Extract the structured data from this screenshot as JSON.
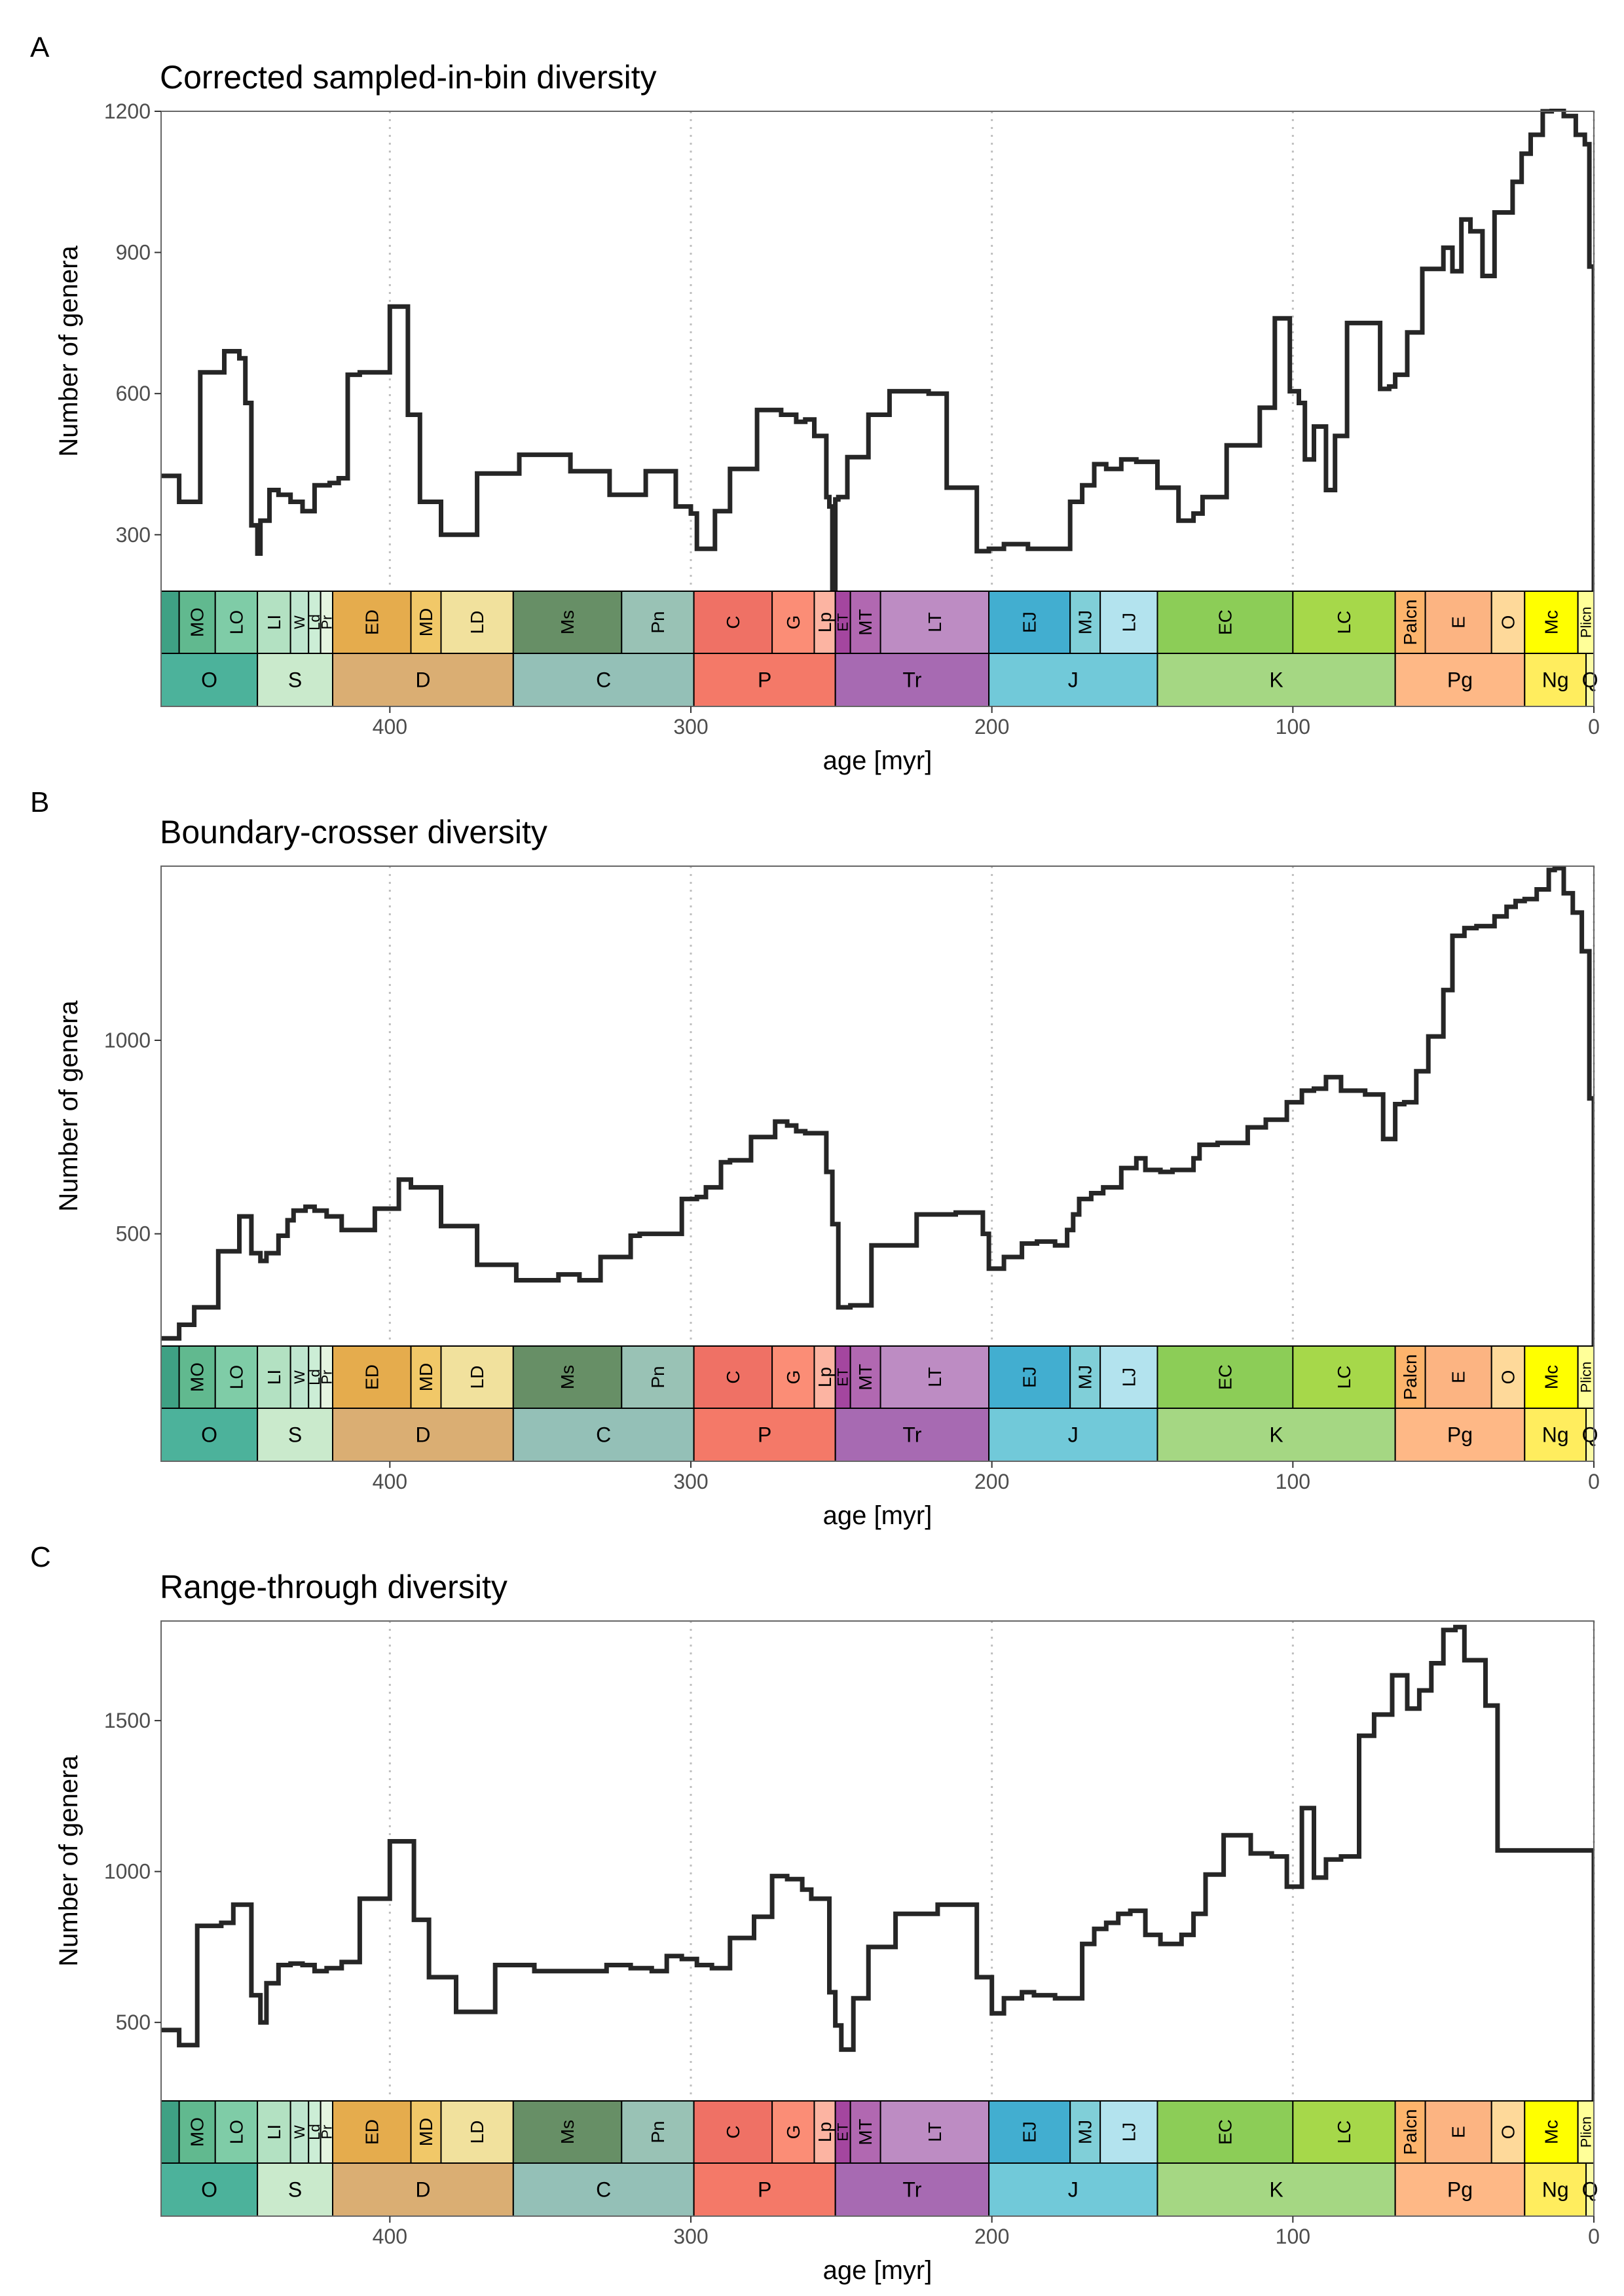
{
  "colors": {
    "line": "#262626",
    "frame": "#666666",
    "gridline": "#bfbfbf",
    "tick_text": "#4d4d4d"
  },
  "timescale": {
    "stages": [
      {
        "label": "",
        "start": 485,
        "end": 470,
        "color": "#3fa184"
      },
      {
        "label": "MO",
        "start": 470,
        "end": 458,
        "color": "#61b98f"
      },
      {
        "label": "LO",
        "start": 458,
        "end": 444,
        "color": "#7fcca7"
      },
      {
        "label": "LI",
        "start": 444,
        "end": 433,
        "color": "#b3e1c2"
      },
      {
        "label": "W",
        "start": 433,
        "end": 427,
        "color": "#bfe6cf"
      },
      {
        "label": "Ld",
        "start": 427,
        "end": 423,
        "color": "#cceed6"
      },
      {
        "label": "Pr",
        "start": 423,
        "end": 419,
        "color": "#e6f5e1"
      },
      {
        "label": "ED",
        "start": 419,
        "end": 393,
        "color": "#e5ac4d"
      },
      {
        "label": "MD",
        "start": 393,
        "end": 383,
        "color": "#f1c868"
      },
      {
        "label": "LD",
        "start": 383,
        "end": 359,
        "color": "#f1e19d"
      },
      {
        "label": "Ms",
        "start": 359,
        "end": 323,
        "color": "#678f66"
      },
      {
        "label": "Pn",
        "start": 323,
        "end": 299,
        "color": "#99c2b5"
      },
      {
        "label": "C",
        "start": 299,
        "end": 273,
        "color": "#ef7165"
      },
      {
        "label": "G",
        "start": 273,
        "end": 259,
        "color": "#fb8d76"
      },
      {
        "label": "Lp",
        "start": 259,
        "end": 252,
        "color": "#fcb4a2"
      },
      {
        "label": "ET",
        "start": 252,
        "end": 247,
        "color": "#a4469f"
      },
      {
        "label": "MT",
        "start": 247,
        "end": 237,
        "color": "#b168b1"
      },
      {
        "label": "LT",
        "start": 237,
        "end": 201,
        "color": "#bd8cc3"
      },
      {
        "label": "EJ",
        "start": 201,
        "end": 174,
        "color": "#42aed0"
      },
      {
        "label": "MJ",
        "start": 174,
        "end": 164,
        "color": "#80cfd8"
      },
      {
        "label": "LJ",
        "start": 164,
        "end": 145,
        "color": "#b3e3ee"
      },
      {
        "label": "EC",
        "start": 145,
        "end": 100,
        "color": "#8ccd57"
      },
      {
        "label": "LC",
        "start": 100,
        "end": 66,
        "color": "#a6d84a"
      },
      {
        "label": "Palcn",
        "start": 66,
        "end": 56,
        "color": "#fdb46c"
      },
      {
        "label": "E",
        "start": 56,
        "end": 34,
        "color": "#fcb482"
      },
      {
        "label": "O",
        "start": 34,
        "end": 23,
        "color": "#fed99a"
      },
      {
        "label": "Mc",
        "start": 23,
        "end": 5.3,
        "color": "#ffff00"
      },
      {
        "label": "Plicn",
        "start": 5.3,
        "end": 0,
        "color": "#ffff99"
      }
    ],
    "periods": [
      {
        "label": "O",
        "start": 485,
        "end": 444,
        "color": "#009270"
      },
      {
        "label": "S",
        "start": 444,
        "end": 419,
        "color": "#b3e1b6"
      },
      {
        "label": "D",
        "start": 419,
        "end": 359,
        "color": "#cb8c37"
      },
      {
        "label": "C",
        "start": 359,
        "end": 299,
        "color": "#67a599"
      },
      {
        "label": "P",
        "start": 299,
        "end": 252,
        "color": "#f04028"
      },
      {
        "label": "Tr",
        "start": 252,
        "end": 201,
        "color": "#812b92"
      },
      {
        "label": "J",
        "start": 201,
        "end": 145,
        "color": "#34b2c9"
      },
      {
        "label": "K",
        "start": 145,
        "end": 66,
        "color": "#7fc64e"
      },
      {
        "label": "Pg",
        "start": 66,
        "end": 23,
        "color": "#fd9a52"
      },
      {
        "label": "Ng",
        "start": 23,
        "end": 2.6,
        "color": "#ffe619"
      },
      {
        "label": "Q",
        "start": 2.6,
        "end": 0,
        "color": "#f9f97f"
      }
    ]
  },
  "panels": [
    {
      "letter": "A",
      "title": "Corrected sampled-in-bin diversity",
      "ylabel": "Number of genera",
      "xlabel": "age [myr]"
    },
    {
      "letter": "B",
      "title": "Boundary-crosser diversity",
      "ylabel": "Number of genera",
      "xlabel": "age [myr]"
    },
    {
      "letter": "C",
      "title": "Range-through diversity",
      "ylabel": "Number of genera",
      "xlabel": "age [myr]"
    }
  ],
  "chart_data": [
    {
      "type": "line",
      "step": true,
      "title": "Corrected sampled-in-bin diversity",
      "xlabel": "age [myr]",
      "ylabel": "Number of genera",
      "xlim": [
        476,
        0
      ],
      "ylim": [
        180,
        1200
      ],
      "xticks": [
        400,
        300,
        200,
        100,
        0
      ],
      "yticks": [
        300,
        600,
        900,
        1200
      ],
      "grid_x": [
        400,
        300,
        200,
        100,
        0
      ],
      "x": [
        476,
        470,
        463,
        455,
        450,
        448,
        446,
        444,
        443,
        440,
        437,
        433,
        429,
        425,
        420,
        417,
        414,
        410,
        400,
        394,
        390,
        383,
        371,
        357,
        340,
        327,
        315,
        305,
        300,
        298,
        292,
        287,
        278,
        270,
        265,
        262,
        259,
        255,
        254,
        253,
        252,
        251,
        248,
        241,
        234,
        221,
        215,
        205,
        201,
        196,
        188,
        183,
        174,
        170,
        166,
        162,
        157,
        152,
        145,
        138,
        133,
        130,
        122,
        111,
        106,
        101,
        98,
        96,
        93,
        89,
        86,
        82,
        71,
        68,
        66,
        62,
        57,
        50,
        47,
        44,
        41,
        37,
        33,
        27,
        24,
        21,
        17,
        14,
        10,
        6,
        3,
        1.5,
        0.5
      ],
      "values": [
        425,
        370,
        645,
        690,
        675,
        580,
        320,
        260,
        330,
        395,
        385,
        370,
        350,
        405,
        410,
        420,
        640,
        645,
        785,
        555,
        370,
        300,
        430,
        470,
        435,
        385,
        435,
        360,
        345,
        270,
        350,
        440,
        565,
        555,
        540,
        545,
        510,
        380,
        360,
        170,
        375,
        380,
        465,
        555,
        605,
        600,
        400,
        265,
        270,
        280,
        270,
        270,
        370,
        405,
        450,
        440,
        460,
        455,
        400,
        330,
        345,
        380,
        490,
        570,
        760,
        605,
        580,
        460,
        530,
        395,
        510,
        750,
        610,
        615,
        640,
        730,
        865,
        910,
        860,
        970,
        945,
        850,
        985,
        1050,
        1110,
        1150,
        1200,
        1205,
        1190,
        1150,
        1130,
        870,
        870
      ]
    },
    {
      "type": "line",
      "step": true,
      "title": "Boundary-crosser diversity",
      "xlabel": "age [myr]",
      "ylabel": "Number of genera",
      "xlim": [
        476,
        0
      ],
      "ylim": [
        210,
        1450
      ],
      "xticks": [
        400,
        300,
        200,
        100,
        0
      ],
      "yticks": [
        500,
        1000
      ],
      "grid_x": [
        400,
        300,
        200,
        100,
        0
      ],
      "x": [
        476,
        470,
        465,
        457,
        450,
        446,
        443,
        441,
        437,
        434,
        432,
        428,
        425,
        421,
        416,
        405,
        397,
        393,
        383,
        371,
        358,
        344,
        337,
        330,
        320,
        317,
        303,
        298,
        295,
        290,
        287,
        280,
        272,
        268,
        265,
        262,
        255,
        253,
        251,
        247,
        240,
        225,
        212,
        203,
        201,
        196,
        190,
        185,
        179,
        175,
        173,
        171,
        167,
        163,
        157,
        152,
        149,
        144,
        140,
        133,
        131,
        125,
        115,
        109,
        102,
        97,
        93,
        89,
        84,
        76,
        70,
        66,
        63,
        59,
        55,
        50,
        47,
        43,
        39,
        33,
        29,
        26,
        23,
        19,
        15,
        13,
        10,
        7,
        4,
        1.5,
        0.5
      ],
      "values": [
        230,
        265,
        310,
        455,
        545,
        450,
        430,
        450,
        495,
        535,
        560,
        570,
        560,
        545,
        510,
        565,
        640,
        620,
        520,
        420,
        380,
        395,
        380,
        440,
        495,
        500,
        590,
        595,
        620,
        685,
        690,
        750,
        790,
        780,
        765,
        760,
        660,
        525,
        310,
        315,
        470,
        550,
        555,
        500,
        410,
        440,
        475,
        480,
        470,
        510,
        550,
        590,
        605,
        620,
        670,
        695,
        665,
        660,
        665,
        695,
        730,
        735,
        775,
        795,
        840,
        870,
        875,
        905,
        870,
        860,
        745,
        835,
        840,
        920,
        1010,
        1130,
        1270,
        1290,
        1295,
        1320,
        1345,
        1360,
        1365,
        1390,
        1440,
        1445,
        1380,
        1330,
        1230,
        850,
        850
      ]
    },
    {
      "type": "line",
      "step": true,
      "title": "Range-through diversity",
      "xlabel": "age [myr]",
      "ylabel": "Number of genera",
      "xlim": [
        476,
        0
      ],
      "ylim": [
        240,
        1830
      ],
      "xticks": [
        400,
        300,
        200,
        100,
        0
      ],
      "yticks": [
        500,
        1000,
        1500
      ],
      "grid_x": [
        400,
        300,
        200,
        100,
        0
      ],
      "x": [
        476,
        470,
        464,
        456,
        452,
        446,
        443,
        441,
        437,
        433,
        429,
        425,
        421,
        416,
        410,
        400,
        392,
        387,
        378,
        365,
        352,
        338,
        328,
        320,
        313,
        308,
        303,
        298,
        293,
        287,
        279,
        273,
        268,
        263,
        260,
        254,
        252,
        250,
        246,
        241,
        232,
        218,
        205,
        200,
        196,
        190,
        186,
        181,
        179,
        170,
        166,
        162,
        158,
        154,
        149,
        144,
        137,
        133,
        129,
        123,
        114,
        107,
        102,
        97,
        93,
        89,
        84,
        78,
        73,
        67,
        62,
        58,
        54,
        50,
        46,
        43,
        36,
        32,
        27,
        23,
        18,
        13,
        10,
        6,
        3,
        1.5,
        0.5
      ],
      "values": [
        475,
        425,
        820,
        830,
        890,
        590,
        500,
        630,
        690,
        695,
        690,
        670,
        680,
        700,
        910,
        1100,
        840,
        650,
        535,
        690,
        670,
        670,
        690,
        680,
        670,
        720,
        710,
        690,
        680,
        780,
        850,
        985,
        975,
        940,
        910,
        600,
        490,
        410,
        580,
        750,
        860,
        890,
        650,
        530,
        580,
        600,
        590,
        590,
        580,
        760,
        810,
        830,
        860,
        870,
        790,
        760,
        790,
        860,
        990,
        1120,
        1060,
        1050,
        950,
        1210,
        980,
        1040,
        1050,
        1450,
        1520,
        1650,
        1540,
        1600,
        1690,
        1800,
        1810,
        1700,
        1550,
        1070,
        1070,
        1070,
        1070,
        1070,
        1070,
        1070,
        1070,
        1070,
        1070
      ]
    }
  ]
}
